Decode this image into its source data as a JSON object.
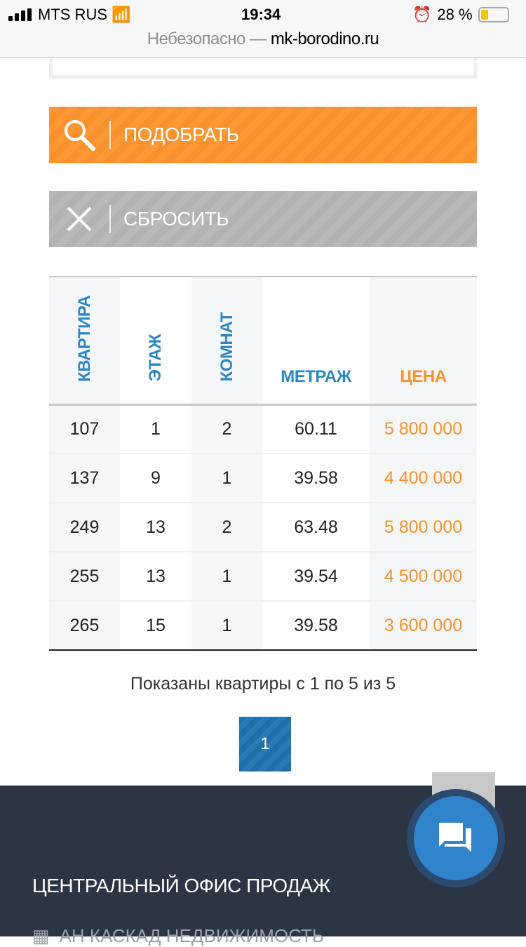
{
  "status_bar": {
    "carrier": "MTS RUS",
    "time": "19:34",
    "battery": "28 %",
    "battery_level": 28,
    "battery_color": "#f5c400"
  },
  "browser": {
    "insecure_label": "Небезопасно —",
    "domain": "mk-borodino.ru"
  },
  "buttons": {
    "search": "ПОДОБРАТЬ",
    "reset": "СБРОСИТЬ"
  },
  "table": {
    "headers": [
      "КВАРТИРА",
      "ЭТАЖ",
      "КОМНАТ",
      "МЕТРАЖ",
      "ЦЕНА"
    ],
    "rows": [
      [
        "107",
        "1",
        "2",
        "60.11",
        "5 800 000"
      ],
      [
        "137",
        "9",
        "1",
        "39.58",
        "4 400 000"
      ],
      [
        "249",
        "13",
        "2",
        "63.48",
        "5 800 000"
      ],
      [
        "255",
        "13",
        "1",
        "39.54",
        "4 500 000"
      ],
      [
        "265",
        "15",
        "1",
        "39.58",
        "3 600 000"
      ]
    ]
  },
  "pagination": {
    "summary": "Показаны квартиры с 1 по 5 из 5",
    "current_page": "1"
  },
  "footer": {
    "title": "ЦЕНТРАЛЬНЫЙ ОФИС ПРОДАЖ",
    "agency": "АН КАСКАД НЕДВИЖИМОСТЬ"
  },
  "colors": {
    "accent_orange": "#f7922e",
    "accent_blue": "#2e86c1",
    "footer_bg": "#2c3544"
  }
}
